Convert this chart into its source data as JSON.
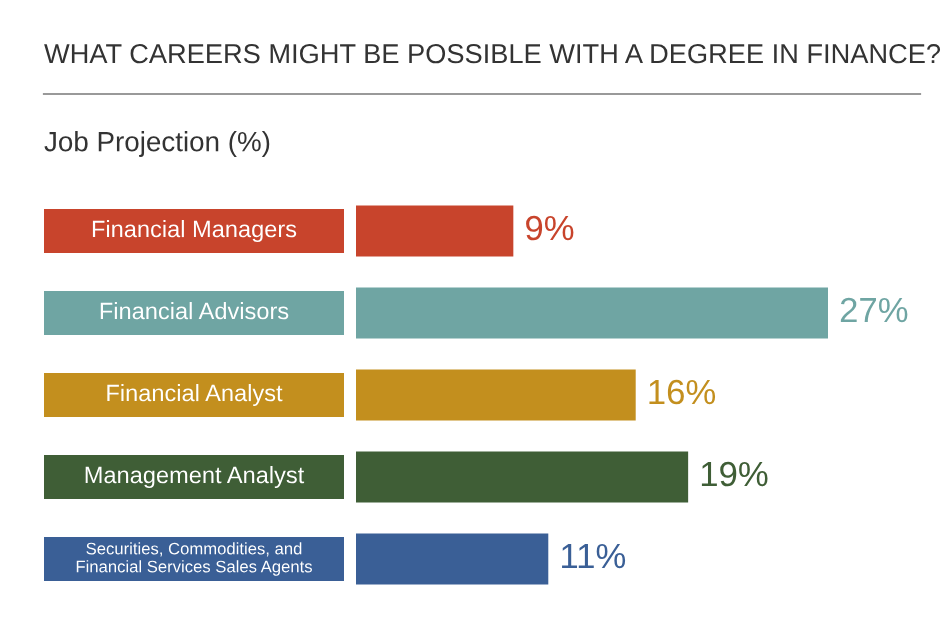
{
  "chart_data": {
    "type": "bar",
    "orientation": "horizontal",
    "title": "WHAT CAREERS MIGHT BE POSSIBLE WITH A DEGREE IN FINANCE?",
    "subtitle": "Job Projection (%)",
    "categories": [
      "Financial Managers",
      "Financial Advisors",
      "Financial Analyst",
      "Management Analyst",
      "Securities, Commodities, and\nFinancial Services Sales Agents"
    ],
    "values": [
      9,
      27,
      16,
      19,
      11
    ],
    "value_labels": [
      "9%",
      "27%",
      "16%",
      "19%",
      "11%"
    ],
    "colors": [
      "#c8442c",
      "#6fa5a3",
      "#c38f1e",
      "#3f5e36",
      "#3a5f96"
    ]
  }
}
